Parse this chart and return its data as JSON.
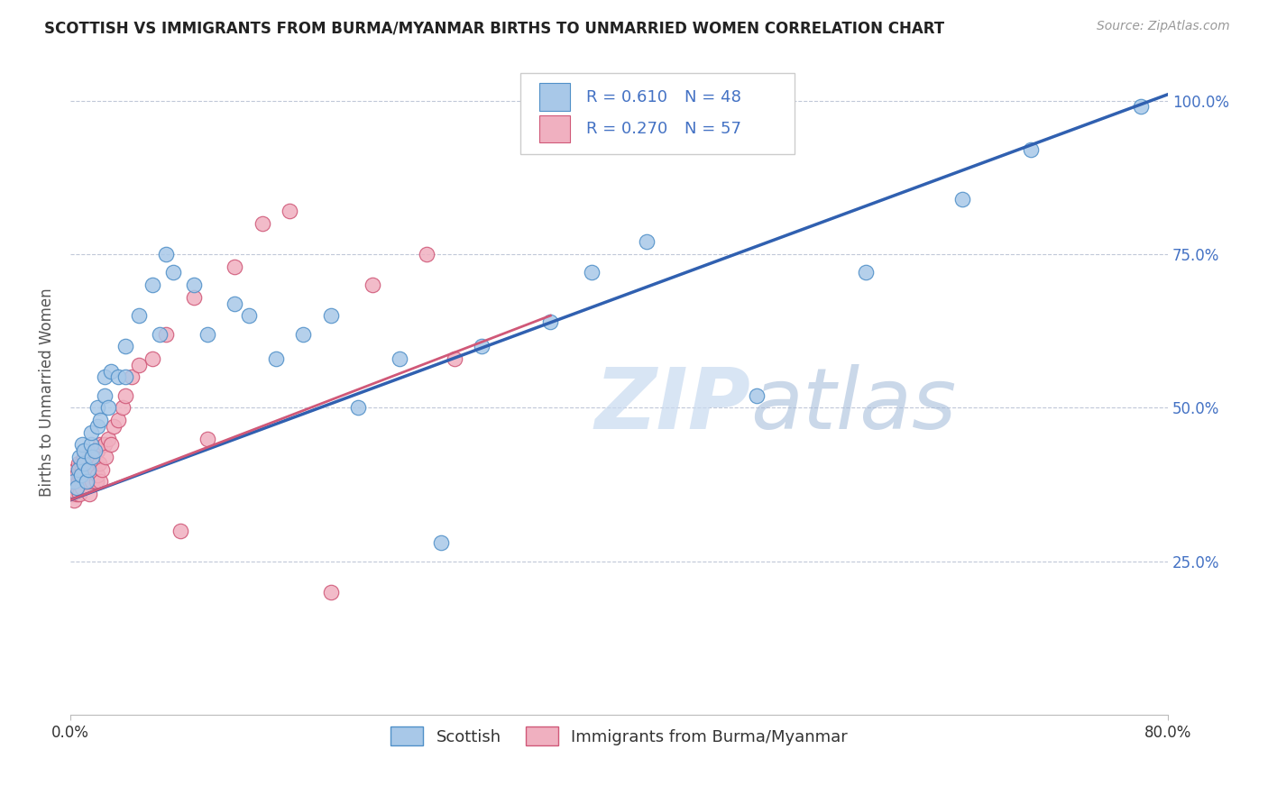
{
  "title": "SCOTTISH VS IMMIGRANTS FROM BURMA/MYANMAR BIRTHS TO UNMARRIED WOMEN CORRELATION CHART",
  "source": "Source: ZipAtlas.com",
  "ylabel": "Births to Unmarried Women",
  "background_color": "#ffffff",
  "blue_color": "#a8c8e8",
  "blue_edge": "#5090c8",
  "pink_color": "#f0b0c0",
  "pink_edge": "#d05878",
  "blue_line_color": "#3060b0",
  "pink_line_color": "#d05878",
  "r_blue": "R = 0.610",
  "n_blue": "N = 48",
  "r_pink": "R = 0.270",
  "n_pink": "N = 57",
  "legend_label_blue": "Scottish",
  "legend_label_pink": "Immigrants from Burma/Myanmar",
  "xlim": [
    0.0,
    0.8
  ],
  "ylim": [
    0.0,
    1.05
  ],
  "yticks": [
    0.25,
    0.5,
    0.75,
    1.0
  ],
  "ytick_labels": [
    "25.0%",
    "50.0%",
    "75.0%",
    "100.0%"
  ],
  "xtick_labels": [
    "0.0%",
    "80.0%"
  ],
  "blue_line": {
    "x0": 0.0,
    "x1": 0.8,
    "y0": 0.35,
    "y1": 1.01
  },
  "pink_line": {
    "x0": 0.0,
    "x1": 0.35,
    "y0": 0.35,
    "y1": 0.65
  },
  "scatter_blue_x": [
    0.003,
    0.005,
    0.006,
    0.007,
    0.008,
    0.009,
    0.01,
    0.01,
    0.012,
    0.013,
    0.015,
    0.015,
    0.016,
    0.018,
    0.02,
    0.02,
    0.022,
    0.025,
    0.025,
    0.028,
    0.03,
    0.035,
    0.04,
    0.04,
    0.05,
    0.06,
    0.065,
    0.07,
    0.075,
    0.09,
    0.1,
    0.12,
    0.13,
    0.15,
    0.17,
    0.19,
    0.21,
    0.24,
    0.27,
    0.3,
    0.35,
    0.38,
    0.42,
    0.5,
    0.58,
    0.65,
    0.7,
    0.78
  ],
  "scatter_blue_y": [
    0.38,
    0.37,
    0.4,
    0.42,
    0.39,
    0.44,
    0.41,
    0.43,
    0.38,
    0.4,
    0.44,
    0.46,
    0.42,
    0.43,
    0.47,
    0.5,
    0.48,
    0.52,
    0.55,
    0.5,
    0.56,
    0.55,
    0.55,
    0.6,
    0.65,
    0.7,
    0.62,
    0.75,
    0.72,
    0.7,
    0.62,
    0.67,
    0.65,
    0.58,
    0.62,
    0.65,
    0.5,
    0.58,
    0.28,
    0.6,
    0.64,
    0.72,
    0.77,
    0.52,
    0.72,
    0.84,
    0.92,
    0.99
  ],
  "scatter_pink_x": [
    0.001,
    0.002,
    0.002,
    0.003,
    0.003,
    0.004,
    0.004,
    0.005,
    0.005,
    0.006,
    0.006,
    0.007,
    0.007,
    0.008,
    0.008,
    0.009,
    0.009,
    0.01,
    0.01,
    0.011,
    0.012,
    0.013,
    0.014,
    0.015,
    0.015,
    0.016,
    0.017,
    0.018,
    0.019,
    0.02,
    0.02,
    0.021,
    0.022,
    0.022,
    0.023,
    0.025,
    0.026,
    0.028,
    0.03,
    0.032,
    0.035,
    0.038,
    0.04,
    0.045,
    0.05,
    0.06,
    0.07,
    0.09,
    0.12,
    0.14,
    0.16,
    0.22,
    0.26,
    0.1,
    0.08,
    0.19,
    0.28
  ],
  "scatter_pink_y": [
    0.37,
    0.36,
    0.39,
    0.35,
    0.38,
    0.37,
    0.4,
    0.36,
    0.39,
    0.38,
    0.41,
    0.36,
    0.39,
    0.38,
    0.41,
    0.37,
    0.4,
    0.39,
    0.42,
    0.41,
    0.38,
    0.4,
    0.36,
    0.39,
    0.42,
    0.38,
    0.41,
    0.4,
    0.38,
    0.39,
    0.43,
    0.41,
    0.38,
    0.44,
    0.4,
    0.44,
    0.42,
    0.45,
    0.44,
    0.47,
    0.48,
    0.5,
    0.52,
    0.55,
    0.57,
    0.58,
    0.62,
    0.68,
    0.73,
    0.8,
    0.82,
    0.7,
    0.75,
    0.45,
    0.3,
    0.2,
    0.58
  ],
  "watermark_zip": "ZIP",
  "watermark_atlas": "atlas",
  "title_fontsize": 12,
  "axis_label_fontsize": 12,
  "tick_fontsize": 12,
  "legend_fontsize": 12
}
